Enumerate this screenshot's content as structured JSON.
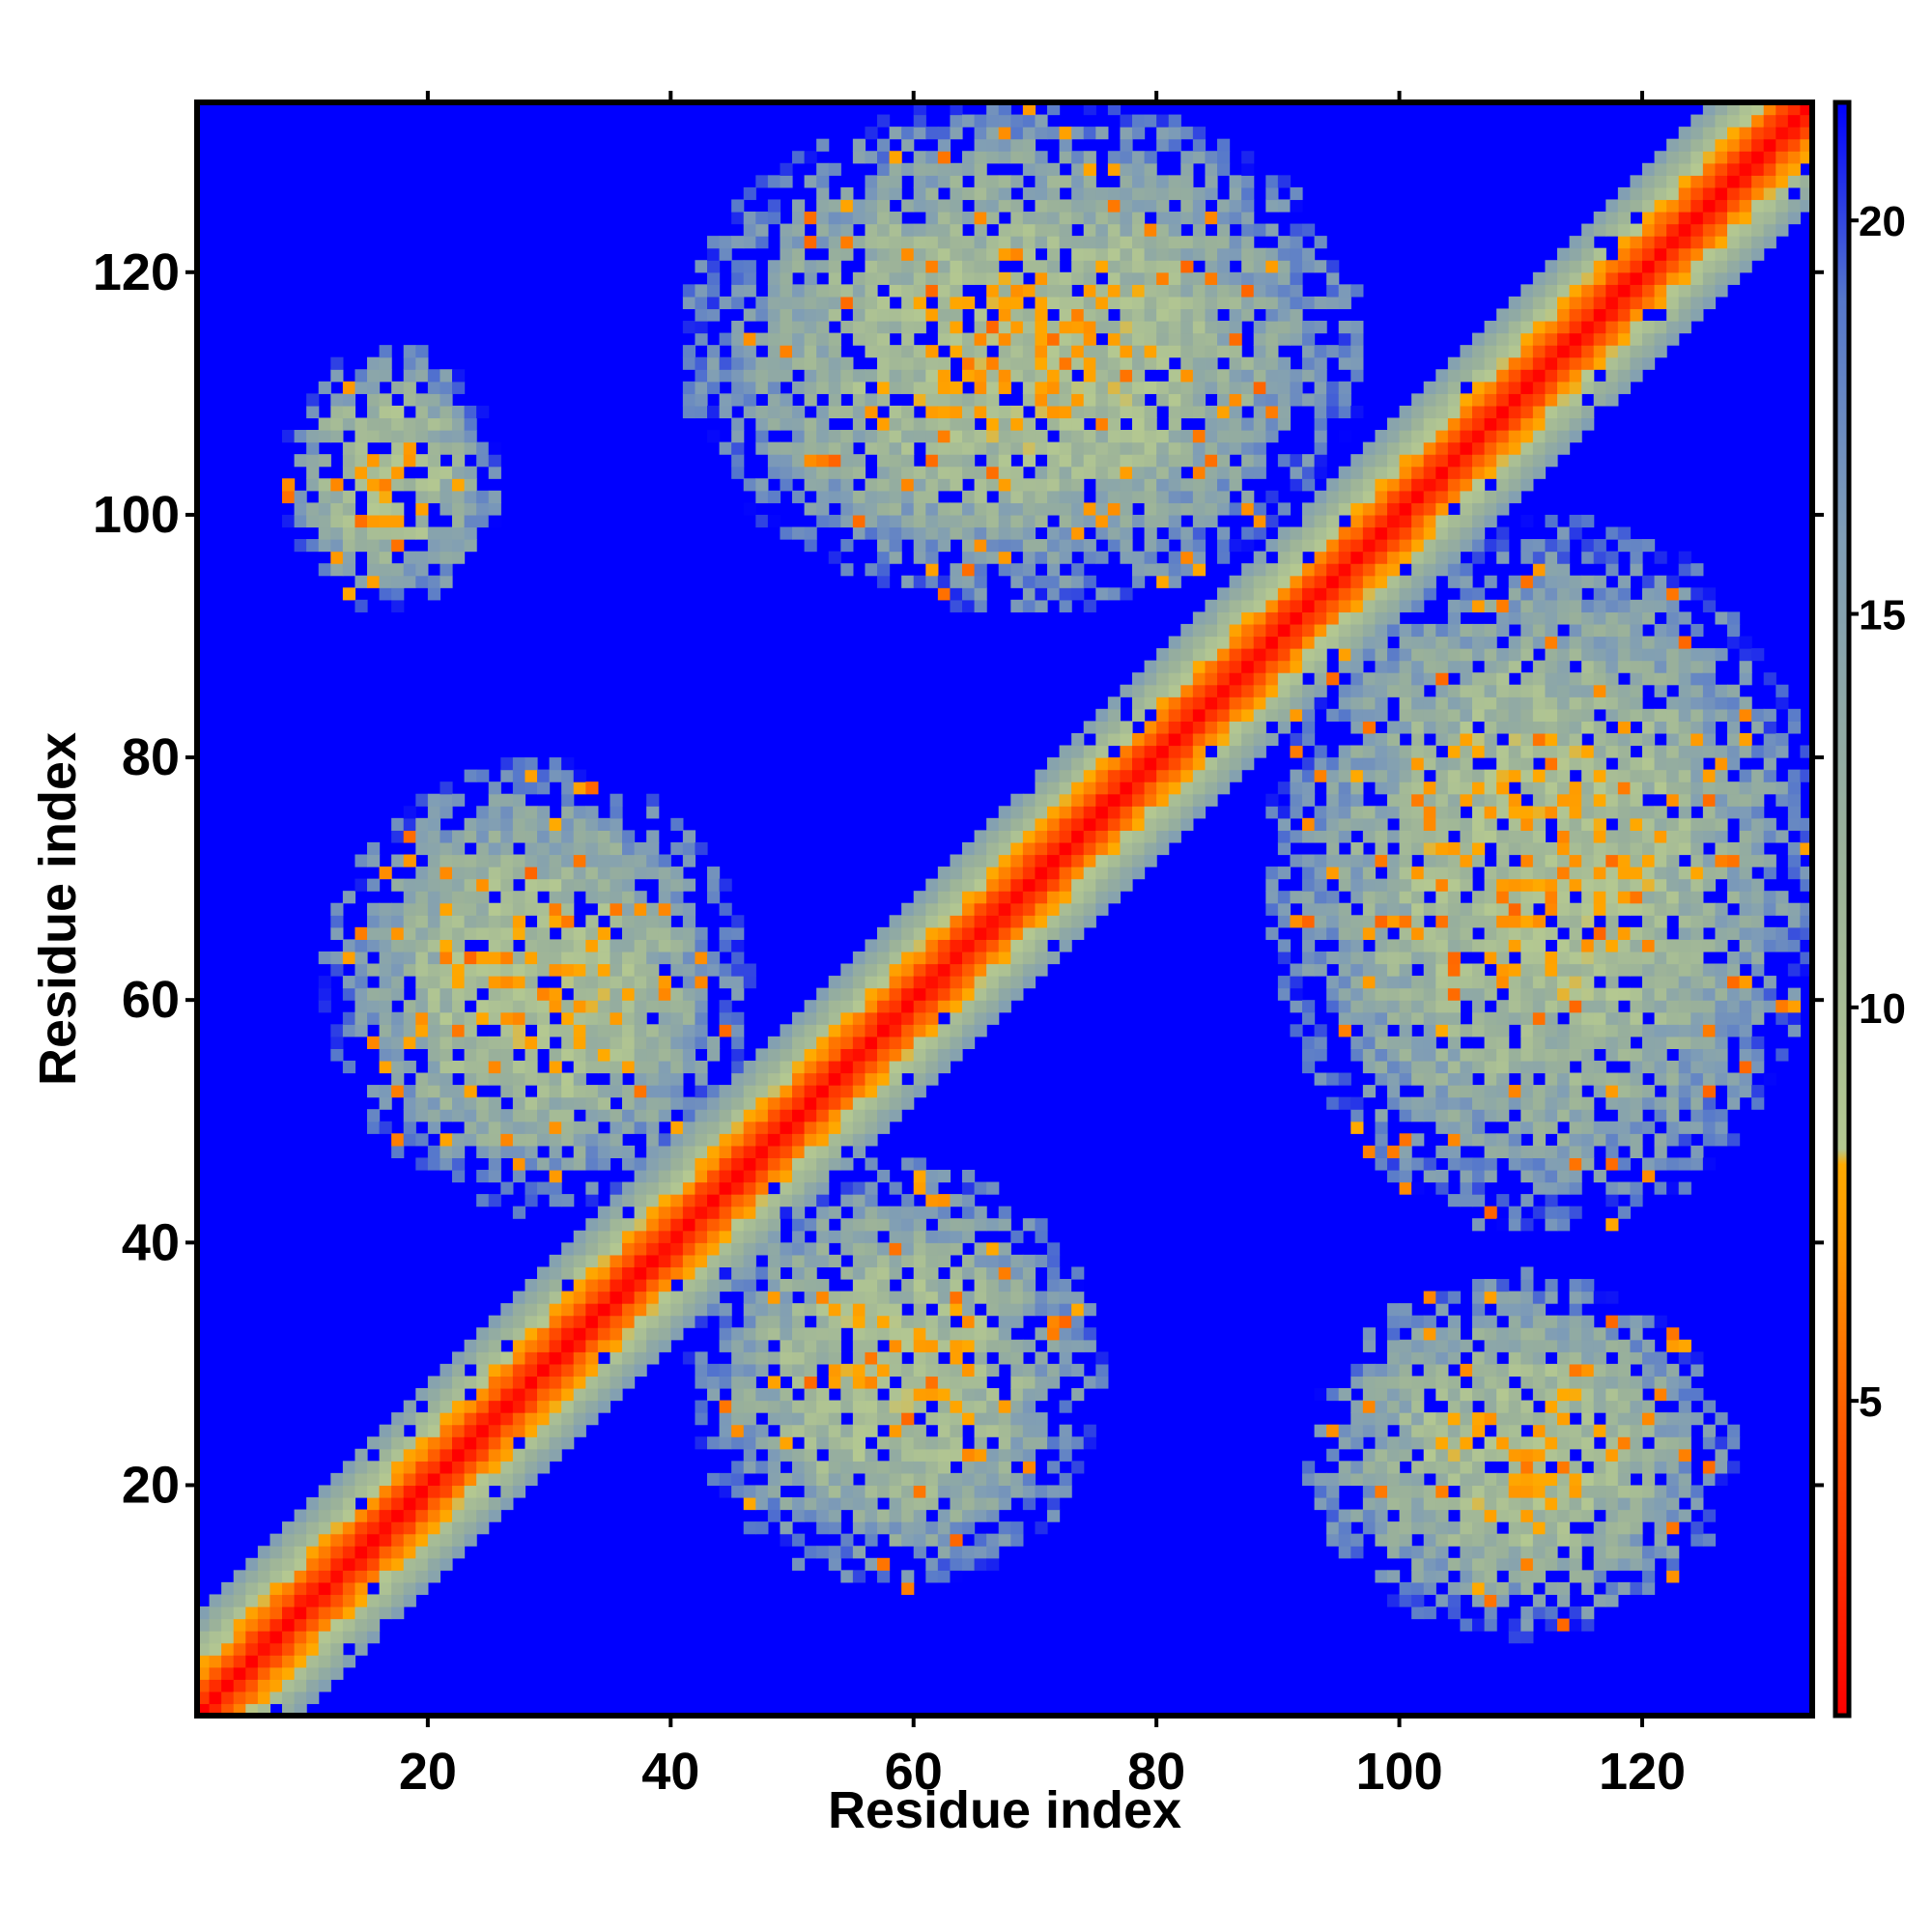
{
  "chart_data": {
    "type": "heatmap",
    "title": "",
    "xlabel": "Residue index",
    "ylabel": "Residue index",
    "xlim": [
      1,
      134
    ],
    "ylim": [
      1,
      134
    ],
    "x_ticks": [
      20,
      40,
      60,
      80,
      100,
      120
    ],
    "y_ticks": [
      20,
      40,
      60,
      80,
      100,
      120
    ],
    "colorbar": {
      "range": [
        1,
        21.5
      ],
      "ticks": [
        5,
        10,
        15,
        20
      ],
      "stops": [
        {
          "value": 1.0,
          "color": "#ff0000"
        },
        {
          "value": 4.5,
          "color": "#ff5500"
        },
        {
          "value": 7.0,
          "color": "#ff9900"
        },
        {
          "value": 8.0,
          "color": "#ffaa00"
        },
        {
          "value": 8.2,
          "color": "#b4c891"
        },
        {
          "value": 12.0,
          "color": "#9ab19a"
        },
        {
          "value": 16.0,
          "color": "#7f9db6"
        },
        {
          "value": 19.0,
          "color": "#5577cc"
        },
        {
          "value": 21.5,
          "color": "#0000ff"
        }
      ]
    },
    "grid": false,
    "matrix_size": 133,
    "background_value": 21.5,
    "description_ranges": {
      "diagonal_band_halfwidth_residues": 8,
      "off_diagonal_contact_regions": [
        {
          "x": [
            8,
            25
          ],
          "y": [
            92,
            113
          ]
        },
        {
          "x": [
            12,
            45
          ],
          "y": [
            43,
            78
          ]
        },
        {
          "x": [
            42,
            74
          ],
          "y": [
            12,
            45
          ]
        },
        {
          "x": [
            42,
            95
          ],
          "y": [
            93,
            133
          ]
        },
        {
          "x": [
            90,
            133
          ],
          "y": [
            42,
            98
          ]
        },
        {
          "x": [
            93,
            126
          ],
          "y": [
            8,
            36
          ]
        }
      ]
    }
  },
  "colors": {
    "background": "#ffffff",
    "axis": "#000000",
    "nocontact": "#0000ff"
  }
}
